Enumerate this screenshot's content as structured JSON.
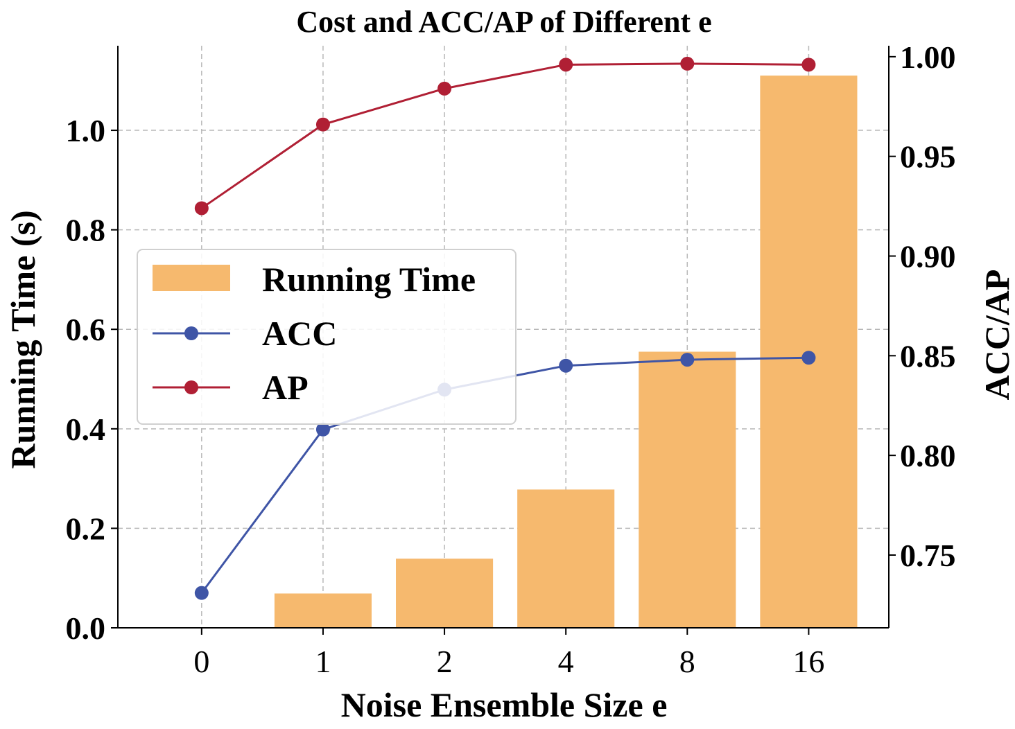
{
  "chart_data": {
    "type": "bar",
    "title": "Cost and ACC/AP of Different e",
    "xlabel": "Noise Ensemble Size e",
    "ylabel_left": "Running Time (s)",
    "ylabel_right": "ACC/AP",
    "categories": [
      "0",
      "1",
      "2",
      "4",
      "8",
      "16"
    ],
    "bar_series": {
      "name": "Running Time",
      "values": [
        0.0,
        0.069,
        0.139,
        0.278,
        0.555,
        1.11
      ],
      "color": "#F6B96E"
    },
    "line_series": [
      {
        "name": "ACC",
        "values": [
          0.731,
          0.813,
          0.833,
          0.845,
          0.848,
          0.849
        ],
        "color": "#3F55A6",
        "axis": "right"
      },
      {
        "name": "AP",
        "values": [
          0.924,
          0.966,
          0.984,
          0.996,
          0.9965,
          0.996
        ],
        "color": "#B01F34",
        "axis": "right"
      }
    ],
    "ylim_left": [
      0.0,
      1.17
    ],
    "yticks_left": [
      0.0,
      0.2,
      0.4,
      0.6,
      0.8,
      1.0
    ],
    "ytick_labels_left": [
      "0.0",
      "0.2",
      "0.4",
      "0.6",
      "0.8",
      "1.0"
    ],
    "ylim_right": [
      0.7135,
      1.0055
    ],
    "yticks_right": [
      0.75,
      0.8,
      0.85,
      0.9,
      0.95,
      1.0
    ],
    "ytick_labels_right": [
      "0.75",
      "0.80",
      "0.85",
      "0.90",
      "0.95",
      "1.00"
    ],
    "grid": true,
    "legend": {
      "position": "center-left",
      "entries": [
        "Running Time",
        "ACC",
        "AP"
      ]
    }
  }
}
